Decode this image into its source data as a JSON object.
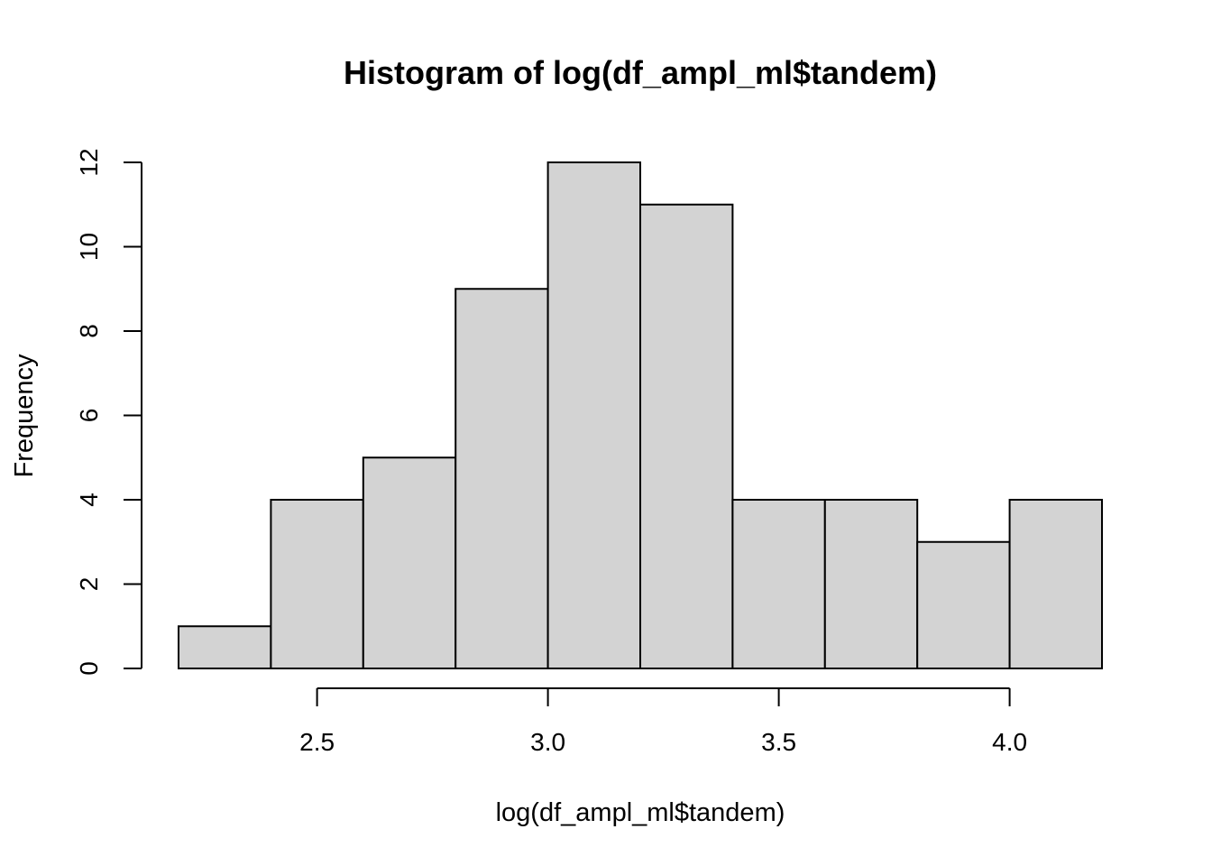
{
  "chart_data": {
    "type": "bar",
    "title": "Histogram of log(df_ampl_ml$tandem)",
    "xlabel": "log(df_ampl_ml$tandem)",
    "ylabel": "Frequency",
    "bins": [
      {
        "x0": 2.2,
        "x1": 2.4,
        "count": 1
      },
      {
        "x0": 2.4,
        "x1": 2.6,
        "count": 4
      },
      {
        "x0": 2.6,
        "x1": 2.8,
        "count": 5
      },
      {
        "x0": 2.8,
        "x1": 3.0,
        "count": 9
      },
      {
        "x0": 3.0,
        "x1": 3.2,
        "count": 12
      },
      {
        "x0": 3.2,
        "x1": 3.4,
        "count": 11
      },
      {
        "x0": 3.4,
        "x1": 3.6,
        "count": 4
      },
      {
        "x0": 3.6,
        "x1": 3.8,
        "count": 4
      },
      {
        "x0": 3.8,
        "x1": 4.0,
        "count": 3
      },
      {
        "x0": 4.0,
        "x1": 4.2,
        "count": 4
      }
    ],
    "xlim": [
      2.2,
      4.2
    ],
    "ylim": [
      0,
      12
    ],
    "x_ticks": [
      {
        "value": 2.5,
        "label": "2.5"
      },
      {
        "value": 3.0,
        "label": "3.0"
      },
      {
        "value": 3.5,
        "label": "3.5"
      },
      {
        "value": 4.0,
        "label": "4.0"
      }
    ],
    "y_ticks": [
      {
        "value": 0,
        "label": "0"
      },
      {
        "value": 2,
        "label": "2"
      },
      {
        "value": 4,
        "label": "4"
      },
      {
        "value": 6,
        "label": "6"
      },
      {
        "value": 8,
        "label": "8"
      },
      {
        "value": 10,
        "label": "10"
      },
      {
        "value": 12,
        "label": "12"
      }
    ],
    "bar_fill": "#d3d3d3",
    "bar_stroke": "#000000",
    "grid": false,
    "legend": "none"
  }
}
